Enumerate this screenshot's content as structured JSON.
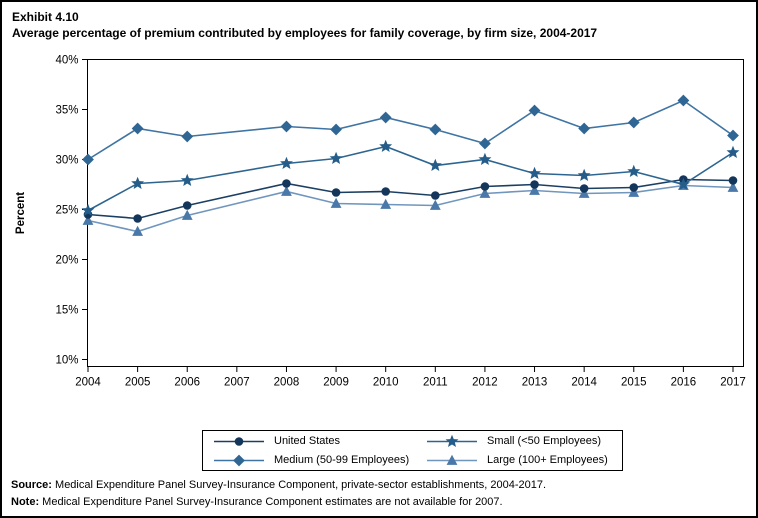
{
  "header": {
    "exhibit": "Exhibit 4.10",
    "title": "Average percentage of premium contributed by employees for family coverage, by firm size, 2004-2017"
  },
  "chart_data": {
    "type": "line",
    "title": "Average percentage of premium contributed by employees for family coverage, by firm size, 2004-2017",
    "xlabel": "",
    "ylabel": "Percent",
    "ylim": [
      10,
      40
    ],
    "grid": false,
    "legend_position": "bottom",
    "y_ticks": [
      10,
      15,
      20,
      25,
      30,
      35,
      40
    ],
    "y_tick_labels": [
      "10%",
      "15%",
      "20%",
      "25%",
      "30%",
      "35%",
      "40%"
    ],
    "categories": [
      "2004",
      "2005",
      "2006",
      "2007",
      "2008",
      "2009",
      "2010",
      "2011",
      "2012",
      "2013",
      "2014",
      "2015",
      "2016",
      "2017"
    ],
    "missing_year": "2007",
    "series": [
      {
        "name": "United States",
        "marker": "circle",
        "color": "#14365a",
        "line_color": "#1b3f63",
        "values": [
          24.5,
          24.1,
          25.4,
          null,
          27.6,
          26.7,
          26.8,
          26.4,
          27.3,
          27.5,
          27.1,
          27.2,
          28.0,
          27.9
        ]
      },
      {
        "name": "Small (<50 Employees)",
        "marker": "star",
        "color": "#245d89",
        "line_color": "#2d6590",
        "values": [
          24.9,
          27.6,
          27.9,
          null,
          29.6,
          30.1,
          31.3,
          29.4,
          30.0,
          28.6,
          28.4,
          28.8,
          27.5,
          30.7
        ]
      },
      {
        "name": "Medium (50-99 Employees)",
        "marker": "diamond",
        "color": "#2f6694",
        "line_color": "#3f74a3",
        "values": [
          30.0,
          33.1,
          32.3,
          null,
          33.3,
          33.0,
          34.2,
          33.0,
          31.6,
          34.9,
          33.1,
          33.7,
          35.9,
          32.4
        ]
      },
      {
        "name": "Large (100+ Employees)",
        "marker": "triangle",
        "color": "#4a78a8",
        "line_color": "#7096bd",
        "values": [
          23.9,
          22.8,
          24.4,
          null,
          26.8,
          25.6,
          25.5,
          25.4,
          26.6,
          26.9,
          26.6,
          26.7,
          27.4,
          27.2
        ]
      }
    ],
    "draw_order": [
      2,
      3,
      0,
      1
    ]
  },
  "legend": {
    "items": [
      {
        "label": "United States",
        "series": 0
      },
      {
        "label": "Small (<50 Employees)",
        "series": 1
      },
      {
        "label": "Medium (50-99 Employees)",
        "series": 2
      },
      {
        "label": "Large (100+ Employees)",
        "series": 3
      }
    ]
  },
  "footer": {
    "source_label": "Source:",
    "source_text": " Medical Expenditure Panel Survey-Insurance Component, private-sector establishments, 2004-2017.",
    "note_label": "Note:",
    "note_text": " Medical Expenditure Panel Survey-Insurance Component estimates are not available for 2007."
  }
}
